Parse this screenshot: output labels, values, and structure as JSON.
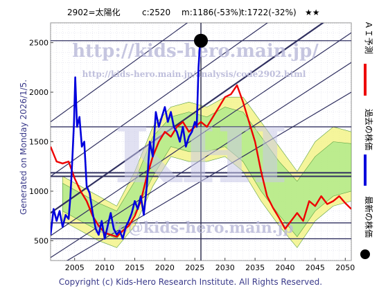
{
  "header": {
    "code_name": "2902=太陽化",
    "current": "c:2520",
    "middle": "m:1186(-53%)",
    "target": "t:1722(-32%)",
    "stars": "★★"
  },
  "left_note": "Generated on Monday 2026/1/5.",
  "watermarks": {
    "url": "http://kids-hero.main.jp/",
    "analysis_url": "http://kids-hero.main.jp/analysis/code2902.html",
    "big": "KHI",
    "email": "info@kids-hero.main.jp"
  },
  "footer": "Copyright (c) Kids-Hero Research Institute. All Rights Reserved.",
  "legend": [
    {
      "label": "ＡＩ予測",
      "color": "#ee0000"
    },
    {
      "label": "過去の株価",
      "color": "#0000dd"
    },
    {
      "label": "最新の株価",
      "color": "#000000"
    }
  ],
  "colors": {
    "ai_forecast": "#ee0000",
    "past_price": "#0000dd",
    "band_yellow": "#f2f27a",
    "band_green": "#a8e88a",
    "channel_lines": "#303060",
    "level_lines": "#303060",
    "latest_marker": "#000000"
  },
  "chart_data": {
    "type": "line",
    "xlim": [
      2001,
      2051
    ],
    "ylim": [
      300,
      2700
    ],
    "x_ticks": [
      2005,
      2010,
      2015,
      2020,
      2025,
      2030,
      2035,
      2040,
      2045,
      2050
    ],
    "y_ticks": [
      500,
      1000,
      1500,
      2000,
      2500
    ],
    "grid": true,
    "latest_point": {
      "x": 2026.0,
      "y": 2520
    },
    "horizontal_levels": [
      520,
      680,
      1150,
      1186,
      1650,
      2520
    ],
    "channel_lines": [
      {
        "from": [
          2001,
          330
        ],
        "to": [
          2051,
          2300
        ]
      },
      {
        "from": [
          2001,
          550
        ],
        "to": [
          2051,
          2600
        ]
      },
      {
        "from": [
          2001,
          780
        ],
        "to": [
          2051,
          2900
        ]
      },
      {
        "from": [
          2001,
          1150
        ],
        "to": [
          2051,
          3300
        ]
      },
      {
        "from": [
          2001,
          1700
        ],
        "to": [
          2051,
          3900
        ]
      },
      {
        "from": [
          2001,
          200
        ],
        "to": [
          2051,
          2000
        ]
      }
    ],
    "series": [
      {
        "name": "過去の株価",
        "x": [
          2001.0,
          2001.5,
          2002.0,
          2002.5,
          2003.0,
          2003.5,
          2004.0,
          2004.3,
          2004.6,
          2004.9,
          2005.1,
          2005.4,
          2005.8,
          2006.2,
          2006.6,
          2007.0,
          2007.5,
          2008.0,
          2008.5,
          2009.0,
          2009.5,
          2010.0,
          2010.5,
          2011.0,
          2011.5,
          2012.0,
          2012.5,
          2013.0,
          2013.5,
          2014.0,
          2014.5,
          2015.0,
          2015.5,
          2016.0,
          2016.5,
          2017.0,
          2017.5,
          2018.0,
          2018.5,
          2019.0,
          2019.5,
          2020.0,
          2020.5,
          2021.0,
          2021.5,
          2022.0,
          2022.5,
          2023.0,
          2023.5,
          2024.0,
          2024.5,
          2025.0,
          2025.3,
          2025.6,
          2025.8,
          2026.0
        ],
        "y": [
          560,
          820,
          700,
          800,
          640,
          760,
          720,
          950,
          1300,
          1700,
          2150,
          1650,
          1750,
          1450,
          1500,
          1050,
          980,
          780,
          620,
          560,
          700,
          520,
          650,
          780,
          620,
          560,
          600,
          520,
          640,
          700,
          780,
          900,
          820,
          950,
          760,
          1050,
          1500,
          1350,
          1800,
          1650,
          1750,
          1850,
          1700,
          1800,
          1650,
          1600,
          1500,
          1650,
          1450,
          1550,
          1600,
          1700,
          1650,
          2250,
          2450,
          2520
        ]
      },
      {
        "name": "ＡＩ予測",
        "x": [
          2001.0,
          2002.0,
          2003.0,
          2004.0,
          2005.0,
          2006.0,
          2007.0,
          2008.0,
          2009.0,
          2010.0,
          2011.0,
          2012.0,
          2013.0,
          2014.0,
          2015.0,
          2016.0,
          2017.0,
          2018.0,
          2019.0,
          2020.0,
          2021.0,
          2022.0,
          2023.0,
          2024.0,
          2025.0,
          2026.0,
          2027.0,
          2028.0,
          2029.0,
          2030.0,
          2031.0,
          2032.0,
          2033.0,
          2034.0,
          2035.0,
          2036.0,
          2037.0,
          2038.0,
          2039.0,
          2040.0,
          2041.0,
          2042.0,
          2043.0,
          2044.0,
          2045.0,
          2046.0,
          2047.0,
          2048.0,
          2049.0,
          2050.0,
          2051.0
        ],
        "y": [
          1450,
          1300,
          1280,
          1300,
          1130,
          1000,
          900,
          750,
          650,
          580,
          560,
          540,
          600,
          650,
          750,
          900,
          1150,
          1350,
          1500,
          1600,
          1550,
          1650,
          1700,
          1600,
          1650,
          1700,
          1650,
          1750,
          1850,
          1950,
          1980,
          2070,
          1900,
          1700,
          1500,
          1200,
          950,
          830,
          730,
          620,
          700,
          780,
          700,
          900,
          850,
          950,
          870,
          900,
          950,
          880,
          820
        ]
      }
    ],
    "band_series": [
      {
        "name": "yellow",
        "x": [
          2003,
          2006,
          2009,
          2012,
          2015,
          2018,
          2021,
          2024,
          2027,
          2030,
          2033,
          2036,
          2039,
          2042,
          2045,
          2048,
          2051
        ],
        "upper": [
          1150,
          1050,
          950,
          850,
          1200,
          1650,
          1850,
          1900,
          1850,
          1950,
          1950,
          1700,
          1450,
          1200,
          1500,
          1650,
          1600
        ],
        "lower": [
          700,
          600,
          500,
          430,
          650,
          1050,
          1350,
          1300,
          1300,
          1350,
          1200,
          900,
          650,
          430,
          700,
          850,
          900
        ]
      },
      {
        "name": "green",
        "x": [
          2003,
          2006,
          2009,
          2012,
          2015,
          2018,
          2021,
          2024,
          2027,
          2030,
          2033,
          2036,
          2039,
          2042,
          2045,
          2048,
          2051
        ],
        "upper": [
          1080,
          980,
          880,
          800,
          1100,
          1550,
          1750,
          1800,
          1750,
          1850,
          1800,
          1550,
          1300,
          1100,
          1350,
          1500,
          1480
        ],
        "lower": [
          800,
          700,
          600,
          520,
          780,
          1150,
          1450,
          1400,
          1400,
          1450,
          1300,
          1000,
          760,
          540,
          800,
          950,
          1000
        ]
      }
    ]
  }
}
